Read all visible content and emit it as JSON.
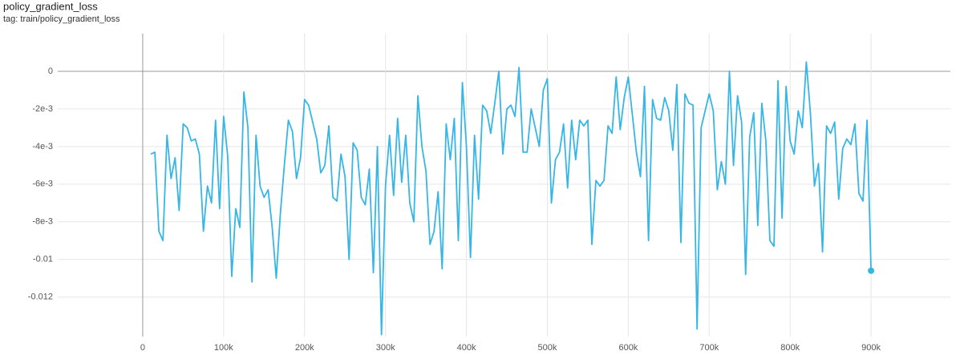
{
  "chart_data": {
    "type": "line",
    "title": "policy_gradient_loss",
    "subtitle": "tag: train/policy_gradient_loss",
    "x": [
      10000,
      15000,
      20000,
      25000,
      30000,
      35000,
      40000,
      45000,
      50000,
      55000,
      60000,
      65000,
      70000,
      75000,
      80000,
      85000,
      90000,
      95000,
      100000,
      105000,
      110000,
      115000,
      120000,
      125000,
      130000,
      135000,
      140000,
      145000,
      150000,
      155000,
      160000,
      165000,
      170000,
      175000,
      180000,
      185000,
      190000,
      195000,
      200000,
      205000,
      210000,
      215000,
      220000,
      225000,
      230000,
      235000,
      240000,
      245000,
      250000,
      255000,
      260000,
      265000,
      270000,
      275000,
      280000,
      285000,
      290000,
      295000,
      300000,
      305000,
      310000,
      315000,
      320000,
      325000,
      330000,
      335000,
      340000,
      345000,
      350000,
      355000,
      360000,
      365000,
      370000,
      375000,
      380000,
      385000,
      390000,
      395000,
      400000,
      405000,
      410000,
      415000,
      420000,
      425000,
      430000,
      435000,
      440000,
      445000,
      450000,
      455000,
      460000,
      465000,
      470000,
      475000,
      480000,
      485000,
      490000,
      495000,
      500000,
      505000,
      510000,
      515000,
      520000,
      525000,
      530000,
      535000,
      540000,
      545000,
      550000,
      555000,
      560000,
      565000,
      570000,
      575000,
      580000,
      585000,
      590000,
      595000,
      600000,
      605000,
      610000,
      615000,
      620000,
      625000,
      630000,
      635000,
      640000,
      645000,
      650000,
      655000,
      660000,
      665000,
      670000,
      675000,
      680000,
      685000,
      690000,
      695000,
      700000,
      705000,
      710000,
      715000,
      720000,
      725000,
      730000,
      735000,
      740000,
      745000,
      750000,
      755000,
      760000,
      765000,
      770000,
      775000,
      780000,
      785000,
      790000,
      795000,
      800000,
      805000,
      810000,
      815000,
      820000,
      825000,
      830000,
      835000,
      840000,
      845000,
      850000,
      855000,
      860000,
      865000,
      870000,
      875000,
      880000,
      885000,
      890000,
      895000,
      900000
    ],
    "series": [
      {
        "name": "train/policy_gradient_loss",
        "color": "#35b6e6",
        "values": [
          -0.0044,
          -0.0043,
          -0.0085,
          -0.009,
          -0.0034,
          -0.0057,
          -0.0046,
          -0.0074,
          -0.0028,
          -0.003,
          -0.0037,
          -0.0036,
          -0.0044,
          -0.0085,
          -0.0061,
          -0.007,
          -0.0026,
          -0.0073,
          -0.0024,
          -0.0045,
          -0.0109,
          -0.0073,
          -0.0083,
          -0.0011,
          -0.003,
          -0.0112,
          -0.0034,
          -0.0061,
          -0.0067,
          -0.0063,
          -0.0083,
          -0.011,
          -0.0076,
          -0.005,
          -0.0026,
          -0.0032,
          -0.0057,
          -0.0046,
          -0.0015,
          -0.0018,
          -0.0027,
          -0.0036,
          -0.0054,
          -0.005,
          -0.0029,
          -0.0067,
          -0.0069,
          -0.0044,
          -0.0056,
          -0.01,
          -0.0038,
          -0.0042,
          -0.0067,
          -0.0071,
          -0.0052,
          -0.0107,
          -0.004,
          -0.014,
          -0.0061,
          -0.0034,
          -0.0066,
          -0.0025,
          -0.0059,
          -0.0034,
          -0.007,
          -0.008,
          -0.0013,
          -0.004,
          -0.0053,
          -0.0092,
          -0.0085,
          -0.0064,
          -0.0105,
          -0.0028,
          -0.0047,
          -0.0025,
          -0.009,
          -0.0006,
          -0.004,
          -0.0099,
          -0.0034,
          -0.0068,
          -0.0018,
          -0.0021,
          -0.0033,
          -0.0017,
          0,
          -0.0044,
          -0.002,
          -0.0018,
          -0.0024,
          0.0002,
          -0.0043,
          -0.0043,
          -0.002,
          -0.003,
          -0.004,
          -0.001,
          -0.0004,
          -0.007,
          -0.0047,
          -0.0043,
          -0.0028,
          -0.0062,
          -0.0026,
          -0.0047,
          -0.0026,
          -0.0029,
          -0.0026,
          -0.0092,
          -0.0058,
          -0.0061,
          -0.0058,
          -0.0029,
          -0.0033,
          -0.0003,
          -0.0031,
          -0.0014,
          -0.0003,
          -0.0023,
          -0.0043,
          -0.0056,
          -0.0008,
          -0.009,
          -0.0015,
          -0.0025,
          -0.0026,
          -0.0014,
          -0.0021,
          -0.0042,
          -0.0007,
          -0.0091,
          -0.0012,
          -0.0017,
          -0.0018,
          -0.0137,
          -0.003,
          -0.0021,
          -0.0012,
          -0.0021,
          -0.0063,
          -0.0048,
          -0.006,
          0,
          -0.005,
          -0.0013,
          -0.0027,
          -0.0108,
          -0.0035,
          -0.0022,
          -0.0082,
          -0.0017,
          -0.0037,
          -0.009,
          -0.0093,
          -0.0005,
          -0.0078,
          -0.0008,
          -0.0037,
          -0.0044,
          -0.0021,
          -0.003,
          0.0005,
          -0.0022,
          -0.0061,
          -0.0049,
          -0.0096,
          -0.0029,
          -0.0033,
          -0.0027,
          -0.0068,
          -0.0041,
          -0.0036,
          -0.0039,
          -0.0028,
          -0.0065,
          -0.0069,
          -0.0026,
          -0.0106
        ]
      }
    ],
    "xlim": [
      -105000,
      998000
    ],
    "ylim": [
      -0.0141,
      0.002
    ],
    "xticks": [
      0,
      {
        "value": 100000,
        "label": "100k"
      },
      {
        "value": 200000,
        "label": "200k"
      },
      {
        "value": 300000,
        "label": "300k"
      },
      {
        "value": 400000,
        "label": "400k"
      },
      {
        "value": 500000,
        "label": "500k"
      },
      {
        "value": 600000,
        "label": "600k"
      },
      {
        "value": 700000,
        "label": "700k"
      },
      {
        "value": 800000,
        "label": "800k"
      },
      {
        "value": 900000,
        "label": "900k"
      }
    ],
    "yticks": [
      0,
      {
        "value": -0.002,
        "label": "-2e-3"
      },
      {
        "value": -0.004,
        "label": "-4e-3"
      },
      {
        "value": -0.006,
        "label": "-6e-3"
      },
      {
        "value": -0.008,
        "label": "-8e-3"
      },
      -0.01,
      -0.012
    ],
    "grid": true
  }
}
